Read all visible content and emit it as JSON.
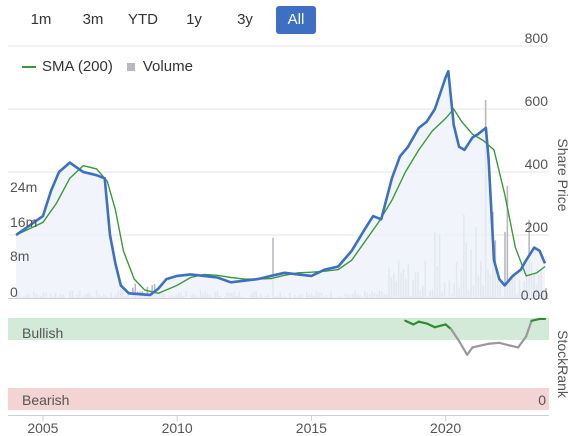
{
  "tabs": [
    {
      "label": "1m",
      "active": false
    },
    {
      "label": "3m",
      "active": false
    },
    {
      "label": "YTD",
      "active": false
    },
    {
      "label": "1y",
      "active": false
    },
    {
      "label": "3y",
      "active": false
    },
    {
      "label": "All",
      "active": true
    }
  ],
  "legend": {
    "sma_label": "SMA (200)",
    "volume_label": "Volume"
  },
  "colors": {
    "price": "#3d6fc2",
    "sma": "#3a9a3a",
    "volume": "#b8b8c2",
    "bullish": "#d4ead8",
    "bearish": "#f4d3d3",
    "rank_bull": "#2e8b2e",
    "rank_neutral": "#999999"
  },
  "chart_data": {
    "type": "line",
    "x_ticks": [
      "2005",
      "2010",
      "2015",
      "2020"
    ],
    "price_axis": {
      "label": "Share Price",
      "ticks": [
        "0.00",
        "200",
        "400",
        "600",
        "800"
      ],
      "ylim": [
        0,
        800
      ]
    },
    "volume_axis": {
      "ticks": [
        "0",
        "8m",
        "16m",
        "24m"
      ],
      "ylim": [
        0,
        48
      ]
    },
    "series": [
      {
        "name": "Price",
        "x": [
          2004.0,
          2004.5,
          2005.0,
          2005.3,
          2005.6,
          2006.0,
          2006.5,
          2007.0,
          2007.3,
          2007.5,
          2007.7,
          2007.9,
          2008.2,
          2008.6,
          2009.0,
          2009.3,
          2009.6,
          2010.0,
          2010.5,
          2011.0,
          2011.5,
          2012.0,
          2012.5,
          2013.0,
          2013.5,
          2014.0,
          2014.5,
          2015.0,
          2015.5,
          2016.0,
          2016.5,
          2017.0,
          2017.3,
          2017.6,
          2018.0,
          2018.3,
          2018.6,
          2019.0,
          2019.3,
          2019.6,
          2020.0,
          2020.1,
          2020.3,
          2020.5,
          2020.7,
          2021.0,
          2021.2,
          2021.5,
          2021.6,
          2021.8,
          2022.0,
          2022.2,
          2022.5,
          2022.8,
          2023.0,
          2023.3,
          2023.5,
          2023.7
        ],
        "values": [
          200,
          230,
          260,
          340,
          400,
          430,
          400,
          390,
          380,
          200,
          110,
          40,
          15,
          12,
          10,
          30,
          60,
          70,
          75,
          70,
          65,
          50,
          55,
          60,
          70,
          80,
          75,
          70,
          90,
          100,
          150,
          220,
          260,
          250,
          380,
          450,
          480,
          540,
          560,
          600,
          700,
          720,
          550,
          480,
          470,
          510,
          520,
          540,
          440,
          120,
          60,
          40,
          70,
          90,
          120,
          160,
          150,
          110
        ]
      },
      {
        "name": "SMA (200)",
        "x": [
          2004.0,
          2004.5,
          2005.0,
          2005.5,
          2006.0,
          2006.5,
          2007.0,
          2007.4,
          2007.7,
          2008.0,
          2008.4,
          2008.8,
          2009.3,
          2010.0,
          2010.5,
          2011.0,
          2011.5,
          2012.0,
          2012.5,
          2013.0,
          2013.5,
          2014.0,
          2014.5,
          2015.0,
          2015.5,
          2016.0,
          2016.5,
          2017.0,
          2017.5,
          2018.0,
          2018.5,
          2019.0,
          2019.5,
          2020.0,
          2020.3,
          2020.6,
          2021.0,
          2021.4,
          2021.8,
          2022.2,
          2022.6,
          2023.0,
          2023.4,
          2023.7
        ],
        "values": [
          200,
          220,
          240,
          300,
          380,
          420,
          410,
          370,
          280,
          150,
          60,
          25,
          15,
          40,
          65,
          75,
          72,
          65,
          60,
          60,
          62,
          72,
          80,
          82,
          85,
          90,
          120,
          180,
          240,
          310,
          400,
          470,
          530,
          570,
          600,
          560,
          520,
          500,
          470,
          330,
          160,
          70,
          80,
          100
        ]
      }
    ],
    "volume": {
      "name": "Volume",
      "note": "sparse bars, mostly low with spikes in 2013 and 2018-2023",
      "max_spike": 46
    },
    "stockrank": {
      "label": "StockRank",
      "top_label": "Bullish",
      "bottom_label": "Bearish",
      "bottom_value": "0",
      "x": [
        2018.5,
        2018.8,
        2019.0,
        2019.3,
        2019.6,
        2020.0,
        2020.2,
        2020.5,
        2020.8,
        2021.0,
        2021.3,
        2021.6,
        2022.0,
        2022.4,
        2022.7,
        2023.0,
        2023.2,
        2023.5,
        2023.7
      ],
      "values": [
        97,
        93,
        96,
        94,
        90,
        93,
        88,
        75,
        60,
        68,
        70,
        72,
        73,
        70,
        68,
        80,
        97,
        99,
        99
      ]
    }
  },
  "labels": {
    "share_price": "Share Price",
    "stockrank": "StockRank",
    "bullish": "Bullish",
    "bearish": "Bearish",
    "rank_zero": "0"
  }
}
